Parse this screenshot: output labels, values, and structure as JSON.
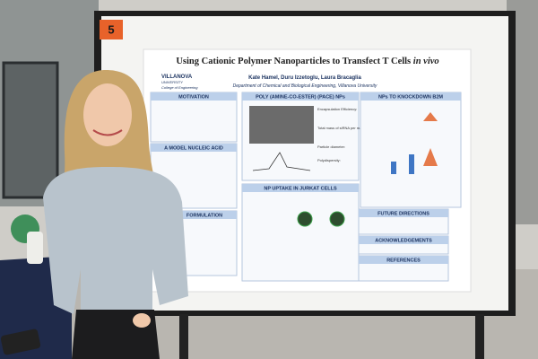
{
  "sign_number": "5",
  "poster": {
    "title": {
      "main": "Using Cationic Polymer Nanoparticles to Transfect T Cells",
      "italic": "in vivo"
    },
    "authors": "Kate Hamel, Duru Izzetoglu, Laura Bracaglia",
    "affiliation": "Department of Chemical and Biological Engineering, Villanova University",
    "logo": {
      "name": "VILLANOVA",
      "subtitle": "UNIVERSITY",
      "college": "College of Engineering"
    },
    "sections": [
      "MOTIVATION",
      "A MODEL NUCLEIC ACID",
      "FORMULATION",
      "POLY (AMINE-CO-ESTER) (PACE) NPs",
      "NPs TO KNOCKDOWN B2M",
      "NP UPTAKE IN JURKAT CELLS",
      "FUTURE DIRECTIONS",
      "ACKNOWLEDGEMENTS",
      "REFERENCES"
    ],
    "pace_stats": [
      "Encapsulation Efficiency:",
      "Total mass of siRNA per mass of NPs:",
      "Particle diameter:",
      "Polydispersity:"
    ]
  }
}
